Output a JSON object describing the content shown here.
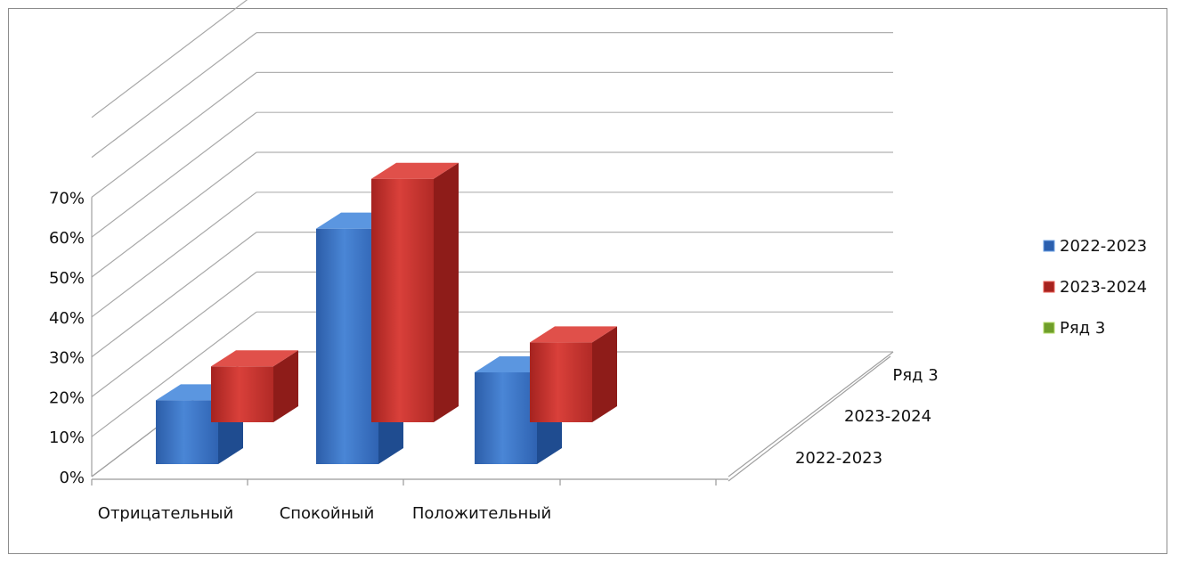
{
  "chart_data": {
    "type": "bar",
    "variant": "3d-column",
    "categories": [
      "Отрицательный",
      "Спокойный",
      "Положительный"
    ],
    "series": [
      {
        "name": "2022-2023",
        "values": [
          0.16,
          0.59,
          0.23
        ],
        "color": "#3b73c4"
      },
      {
        "name": "2023-2024",
        "values": [
          0.14,
          0.61,
          0.2
        ],
        "color": "#c7302c"
      },
      {
        "name": "Ряд 3",
        "values": [
          0,
          0,
          0
        ],
        "color": "#8fbe3e"
      }
    ],
    "y_ticks": [
      "0%",
      "10%",
      "20%",
      "30%",
      "40%",
      "50%",
      "60%",
      "70%"
    ],
    "ylim": [
      0,
      1
    ],
    "depth_labels": [
      "2022-2023",
      "2023-2024",
      "Ряд 3"
    ],
    "legend_position": "right",
    "grid": true
  }
}
